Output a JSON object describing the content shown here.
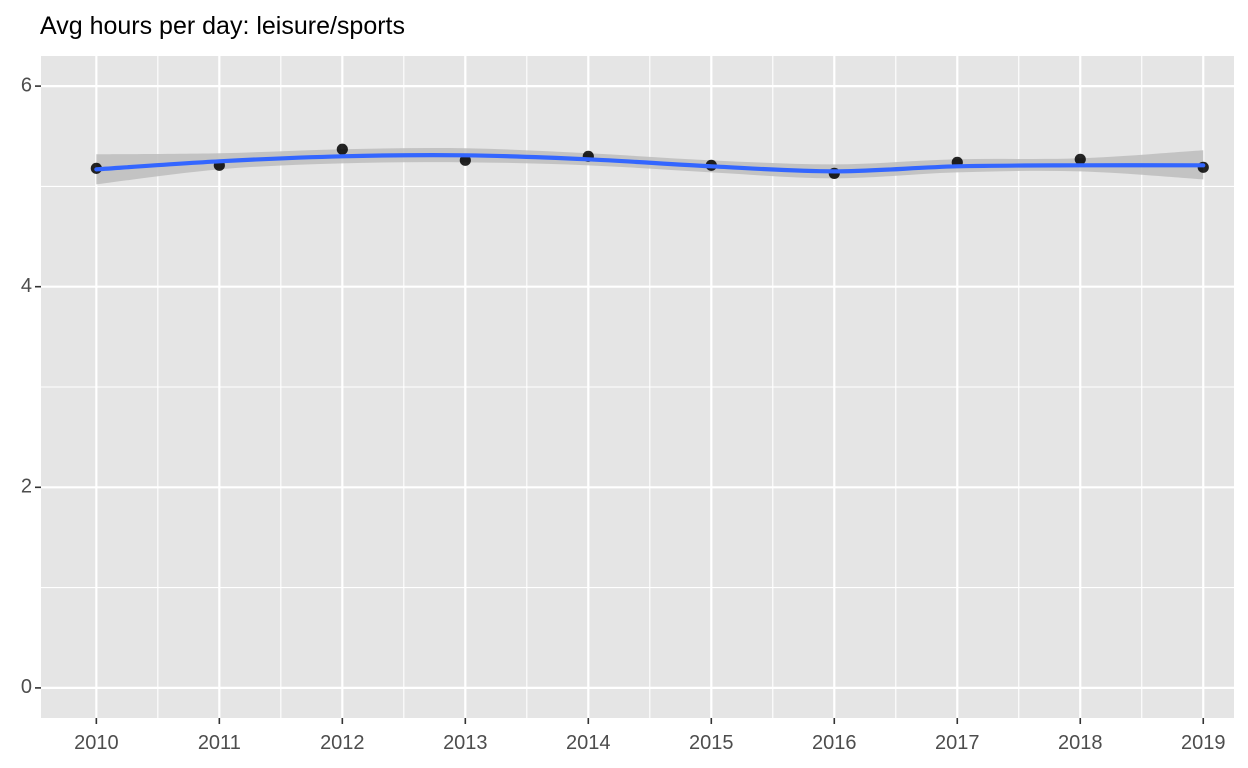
{
  "chart_data": {
    "type": "line",
    "title": "Avg hours per day: leisure/sports",
    "xlabel": "",
    "ylabel": "",
    "x": [
      2010,
      2011,
      2012,
      2013,
      2014,
      2015,
      2016,
      2017,
      2018,
      2019
    ],
    "x_tick_labels": [
      "2010",
      "2011",
      "2012",
      "2013",
      "2014",
      "2015",
      "2016",
      "2017",
      "2018",
      "2019"
    ],
    "y_tick_values": [
      0,
      2,
      4,
      6
    ],
    "y_tick_labels": [
      "0",
      "2",
      "4",
      "6"
    ],
    "xlim": [
      2009.55,
      2019.25
    ],
    "ylim": [
      -0.3,
      6.3
    ],
    "grid": true,
    "legend": "none",
    "series": [
      {
        "kind": "points",
        "values": [
          5.18,
          5.21,
          5.37,
          5.26,
          5.3,
          5.21,
          5.13,
          5.24,
          5.27,
          5.19
        ],
        "color": "#000000"
      },
      {
        "kind": "smooth",
        "values": [
          5.17,
          5.25,
          5.3,
          5.31,
          5.27,
          5.2,
          5.15,
          5.2,
          5.21,
          5.21
        ],
        "ci_lower": [
          5.02,
          5.17,
          5.23,
          5.24,
          5.21,
          5.14,
          5.08,
          5.14,
          5.15,
          5.07
        ],
        "ci_upper": [
          5.32,
          5.33,
          5.37,
          5.38,
          5.33,
          5.26,
          5.22,
          5.27,
          5.28,
          5.36
        ],
        "color": "#3366ff",
        "ci_color": "#bdbdbd"
      }
    ],
    "colors": {
      "panel": "#e5e5e5",
      "grid": "#ffffff",
      "text": "#4d4d4d",
      "tick": "#333333"
    }
  }
}
